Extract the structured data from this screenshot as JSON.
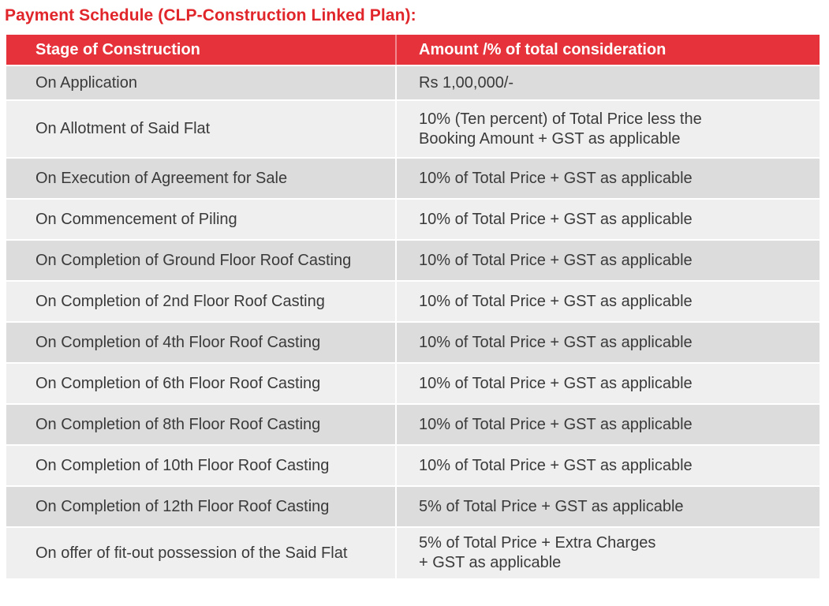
{
  "title": "Payment Schedule (CLP-Construction Linked Plan):",
  "table": {
    "headers": [
      "Stage of Construction",
      "Amount /% of total consideration"
    ],
    "rows": [
      [
        "On Application",
        "Rs 1,00,000/-"
      ],
      [
        "On Allotment of Said Flat",
        "10% (Ten percent) of Total Price less the\nBooking Amount + GST as applicable"
      ],
      [
        "On Execution of Agreement for Sale",
        "10% of Total Price + GST as applicable"
      ],
      [
        "On Commencement of Piling",
        "10% of Total Price + GST as applicable"
      ],
      [
        "On Completion of Ground Floor Roof Casting",
        "10% of Total Price + GST as applicable"
      ],
      [
        "On Completion of 2nd Floor Roof Casting",
        "10% of Total Price + GST as applicable"
      ],
      [
        "On Completion of 4th Floor Roof Casting",
        "10% of Total Price + GST as applicable"
      ],
      [
        "On Completion of 6th Floor Roof Casting",
        "10% of Total Price + GST as applicable"
      ],
      [
        "On Completion of 8th Floor Roof Casting",
        "10% of Total Price + GST as applicable"
      ],
      [
        "On Completion of 10th Floor Roof Casting",
        "10% of Total Price + GST as applicable"
      ],
      [
        "On Completion of 12th Floor Roof Casting",
        "5% of Total Price + GST as applicable"
      ],
      [
        "On offer of fit-out possession of the Said Flat",
        "5% of Total Price + Extra Charges\n+ GST as applicable"
      ]
    ]
  },
  "colors": {
    "accent": "#e6323a",
    "title": "#e0262b",
    "row_dark": "#dcdcdc",
    "row_light": "#efefef",
    "text": "#3a3a3a"
  }
}
